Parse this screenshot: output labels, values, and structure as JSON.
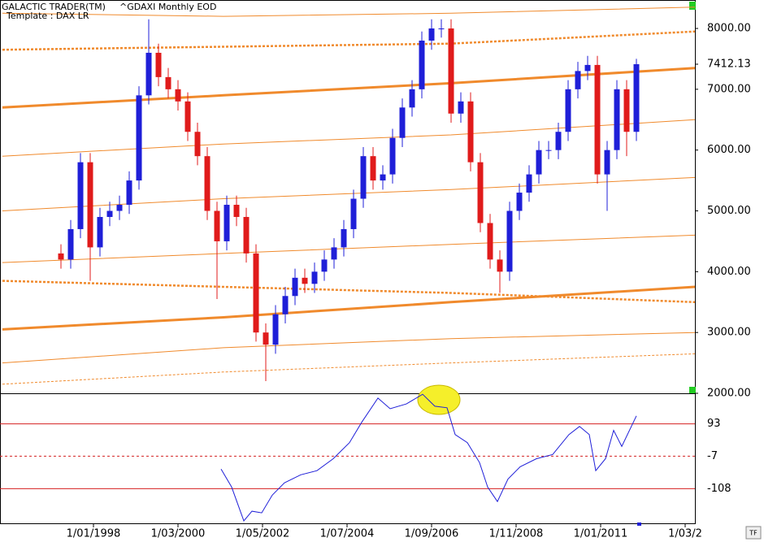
{
  "chart_data": [
    {
      "type": "candlestick",
      "title": "GALACTIC TRADER(TM)",
      "subtitle": "^GDAXI Monthly EOD",
      "annotation": "Template : DAX LR",
      "xlim": [
        -28.75,
        185
      ],
      "ylim": [
        2000,
        8468
      ],
      "yticks": [
        {
          "value": 2000,
          "label": "2000.00"
        },
        {
          "value": 3000,
          "label": "3000.00"
        },
        {
          "value": 4000,
          "label": "4000.00"
        },
        {
          "value": 5000,
          "label": "5000.00"
        },
        {
          "value": 6000,
          "label": "6000.00"
        },
        {
          "value": 7000,
          "label": "7000.00"
        },
        {
          "value": 7412.13,
          "label": "7412.13"
        },
        {
          "value": 8000,
          "label": "8000.00"
        }
      ],
      "up_color": "#1f1fd8",
      "down_color": "#e01b1b",
      "x": [
        -10,
        -7,
        -4,
        -1,
        2,
        5,
        8,
        11,
        14,
        17,
        20,
        23,
        26,
        29,
        32,
        35,
        38,
        41,
        44,
        47,
        50,
        53,
        56,
        59,
        62,
        65,
        68,
        71,
        74,
        77,
        80,
        83,
        86,
        89,
        92,
        95,
        98,
        101,
        104,
        107,
        110,
        113,
        116,
        119,
        122,
        125,
        128,
        131,
        134,
        137,
        140,
        143,
        146,
        149,
        152,
        155,
        158,
        161,
        164,
        167
      ],
      "open": [
        4300,
        4200,
        4700,
        5800,
        4400,
        4900,
        5000,
        5100,
        5500,
        6900,
        7600,
        7200,
        7000,
        6800,
        6300,
        5900,
        5000,
        4500,
        5100,
        4900,
        4300,
        3000,
        2800,
        3300,
        3600,
        3900,
        3800,
        4000,
        4200,
        4400,
        4700,
        5200,
        5900,
        5500,
        5600,
        6200,
        6700,
        7000,
        7800,
        8000,
        8000,
        6600,
        6800,
        5800,
        4800,
        4200,
        4000,
        5000,
        5300,
        5600,
        6000,
        6000,
        6300,
        7000,
        7300,
        7400,
        5600,
        6000,
        7000,
        6300
      ],
      "high": [
        4450,
        4850,
        5950,
        5950,
        5050,
        5150,
        5250,
        5650,
        7050,
        8150,
        7750,
        7350,
        7150,
        6950,
        6450,
        6050,
        5150,
        5250,
        5250,
        5050,
        4450,
        3150,
        3450,
        3750,
        4050,
        4050,
        4150,
        4350,
        4550,
        4850,
        5350,
        6050,
        6050,
        5750,
        6350,
        6850,
        7150,
        7950,
        8150,
        8150,
        8150,
        6950,
        6950,
        5950,
        4950,
        4350,
        5150,
        5450,
        5750,
        6150,
        6150,
        6450,
        7150,
        7450,
        7550,
        7550,
        6150,
        7150,
        7150,
        7500
      ],
      "low": [
        4050,
        4050,
        4550,
        3850,
        4250,
        4750,
        4850,
        4950,
        5350,
        6750,
        7050,
        6850,
        6650,
        6150,
        5750,
        4850,
        3550,
        4350,
        4750,
        4150,
        2850,
        2200,
        2650,
        3150,
        3450,
        3650,
        3650,
        3850,
        4050,
        4250,
        4550,
        5050,
        5350,
        5350,
        5450,
        6050,
        6550,
        6850,
        7650,
        7850,
        6450,
        6450,
        5650,
        4650,
        4050,
        3650,
        3850,
        4850,
        5150,
        5450,
        5850,
        5850,
        6150,
        6850,
        7150,
        5450,
        5000,
        5850,
        5900,
        6150
      ],
      "close": [
        4200,
        4700,
        5800,
        4400,
        4900,
        5000,
        5100,
        5500,
        6900,
        7600,
        7200,
        7000,
        6800,
        6300,
        5900,
        5000,
        4500,
        5100,
        4900,
        4300,
        3000,
        2800,
        3300,
        3600,
        3900,
        3800,
        4000,
        4200,
        4400,
        4700,
        5200,
        5900,
        5500,
        5600,
        6200,
        6700,
        7000,
        7800,
        8000,
        8000,
        6600,
        6800,
        5800,
        4800,
        4200,
        4000,
        5000,
        5300,
        5600,
        6000,
        6000,
        6300,
        7000,
        7300,
        7400,
        5600,
        6000,
        7000,
        6300,
        7412.13
      ],
      "band_x": [
        -28,
        40,
        110,
        185
      ],
      "band_color": "#f08a2c",
      "bands": [
        {
          "values": [
            8250,
            8200,
            8250,
            8350
          ],
          "width": 1,
          "dashed": false
        },
        {
          "values": [
            7650,
            7700,
            7750,
            7950
          ],
          "width": 2.5,
          "dashed": true
        },
        {
          "values": [
            6700,
            6900,
            7100,
            7350
          ],
          "width": 3,
          "dashed": false
        },
        {
          "values": [
            5900,
            6100,
            6250,
            6500
          ],
          "width": 1,
          "dashed": false
        },
        {
          "values": [
            5000,
            5200,
            5350,
            5550
          ],
          "width": 1,
          "dashed": false
        },
        {
          "values": [
            4150,
            4300,
            4450,
            4600
          ],
          "width": 1,
          "dashed": false
        },
        {
          "values": [
            3850,
            3750,
            3650,
            3500
          ],
          "width": 2.5,
          "dashed": true
        },
        {
          "values": [
            3050,
            3250,
            3500,
            3750
          ],
          "width": 3,
          "dashed": false
        },
        {
          "values": [
            2500,
            2750,
            2900,
            3000
          ],
          "width": 1,
          "dashed": false
        },
        {
          "values": [
            2150,
            2350,
            2500,
            2650
          ],
          "width": 1,
          "dashed": true
        }
      ]
    },
    {
      "type": "line",
      "color": "#1f1fd8",
      "xlim": [
        -28.75,
        185
      ],
      "ylim": [
        -218,
        188
      ],
      "yticks": [
        93,
        -7,
        -108
      ],
      "level_color": "#d42020",
      "xticks": [
        {
          "value": 0,
          "label": "1/01/1998"
        },
        {
          "value": 26,
          "label": "1/03/2000"
        },
        {
          "value": 52,
          "label": "1/05/2002"
        },
        {
          "value": 78,
          "label": "1/07/2004"
        },
        {
          "value": 104,
          "label": "1/09/2006"
        },
        {
          "value": 130,
          "label": "1/11/2008"
        },
        {
          "value": 156,
          "label": "1/01/2011"
        },
        {
          "value": 182,
          "label": "1/03/2"
        }
      ],
      "x": [
        39.25,
        42.5,
        46.25,
        48.75,
        51.75,
        55,
        58.75,
        63.75,
        68.75,
        73.75,
        78.75,
        82.5,
        87.5,
        91.25,
        96.25,
        101.25,
        105,
        108.75,
        111.25,
        115,
        118.75,
        121.25,
        124.25,
        127.5,
        131.25,
        136.25,
        141.25,
        146.25,
        149.5,
        152.5,
        154.5,
        157.5,
        160,
        162.5,
        167
      ],
      "values": [
        -47,
        -103,
        -208,
        -178,
        -183,
        -128,
        -90,
        -65,
        -52,
        -15,
        35,
        98,
        173,
        140,
        155,
        185,
        148,
        143,
        60,
        35,
        -27,
        -103,
        -148,
        -78,
        -40,
        -15,
        -2,
        60,
        85,
        60,
        -52,
        -15,
        73,
        23,
        118
      ]
    }
  ]
}
